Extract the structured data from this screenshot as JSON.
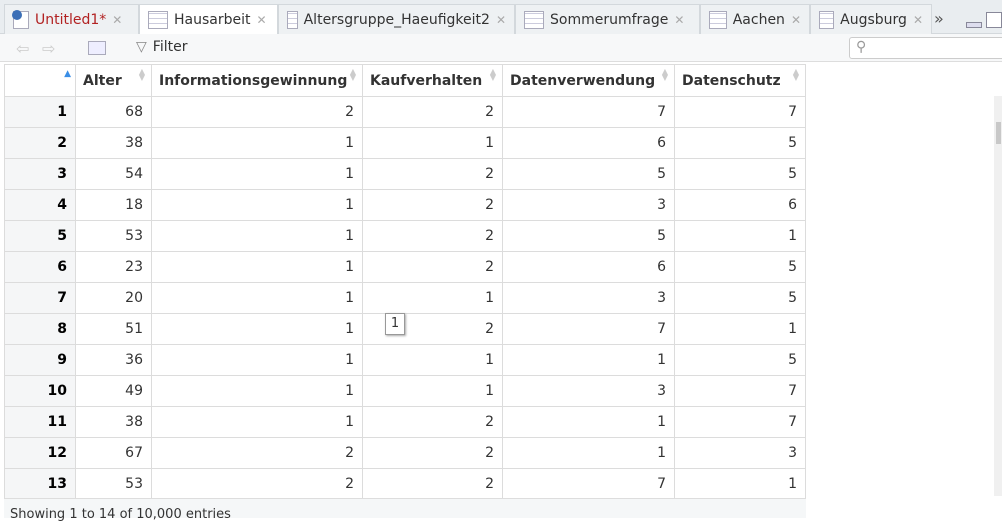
{
  "tabs": [
    {
      "label": "Untitled1*",
      "icon": "r-script-icon",
      "color": "#b22222"
    },
    {
      "label": "Hausarbeit",
      "icon": "data-grid-icon",
      "active": true
    },
    {
      "label": "Altersgruppe_Haeufigkeit2",
      "icon": "data-grid-icon"
    },
    {
      "label": "Sommerumfrage",
      "icon": "data-grid-icon"
    },
    {
      "label": "Aachen",
      "icon": "data-grid-icon"
    },
    {
      "label": "Augsburg",
      "icon": "data-grid-icon"
    }
  ],
  "toolbar": {
    "filter_label": "Filter",
    "search_placeholder": ""
  },
  "table": {
    "columns": [
      "",
      "Alter",
      "Informationsgewinnung",
      "Kaufverhalten",
      "Datenverwendung",
      "Datenschutz"
    ],
    "rows": [
      [
        1,
        68,
        2,
        2,
        7,
        7
      ],
      [
        2,
        38,
        1,
        1,
        6,
        5
      ],
      [
        3,
        54,
        1,
        2,
        5,
        5
      ],
      [
        4,
        18,
        1,
        2,
        3,
        6
      ],
      [
        5,
        53,
        1,
        2,
        5,
        1
      ],
      [
        6,
        23,
        1,
        2,
        6,
        5
      ],
      [
        7,
        20,
        1,
        1,
        3,
        5
      ],
      [
        8,
        51,
        1,
        2,
        7,
        1
      ],
      [
        9,
        36,
        1,
        1,
        1,
        5
      ],
      [
        10,
        49,
        1,
        1,
        3,
        7
      ],
      [
        11,
        38,
        1,
        2,
        1,
        7
      ],
      [
        12,
        67,
        2,
        2,
        1,
        3
      ],
      [
        13,
        53,
        2,
        2,
        7,
        1
      ]
    ]
  },
  "tooltip": "1",
  "footer": "Showing 1 to 14 of 10,000 entries"
}
